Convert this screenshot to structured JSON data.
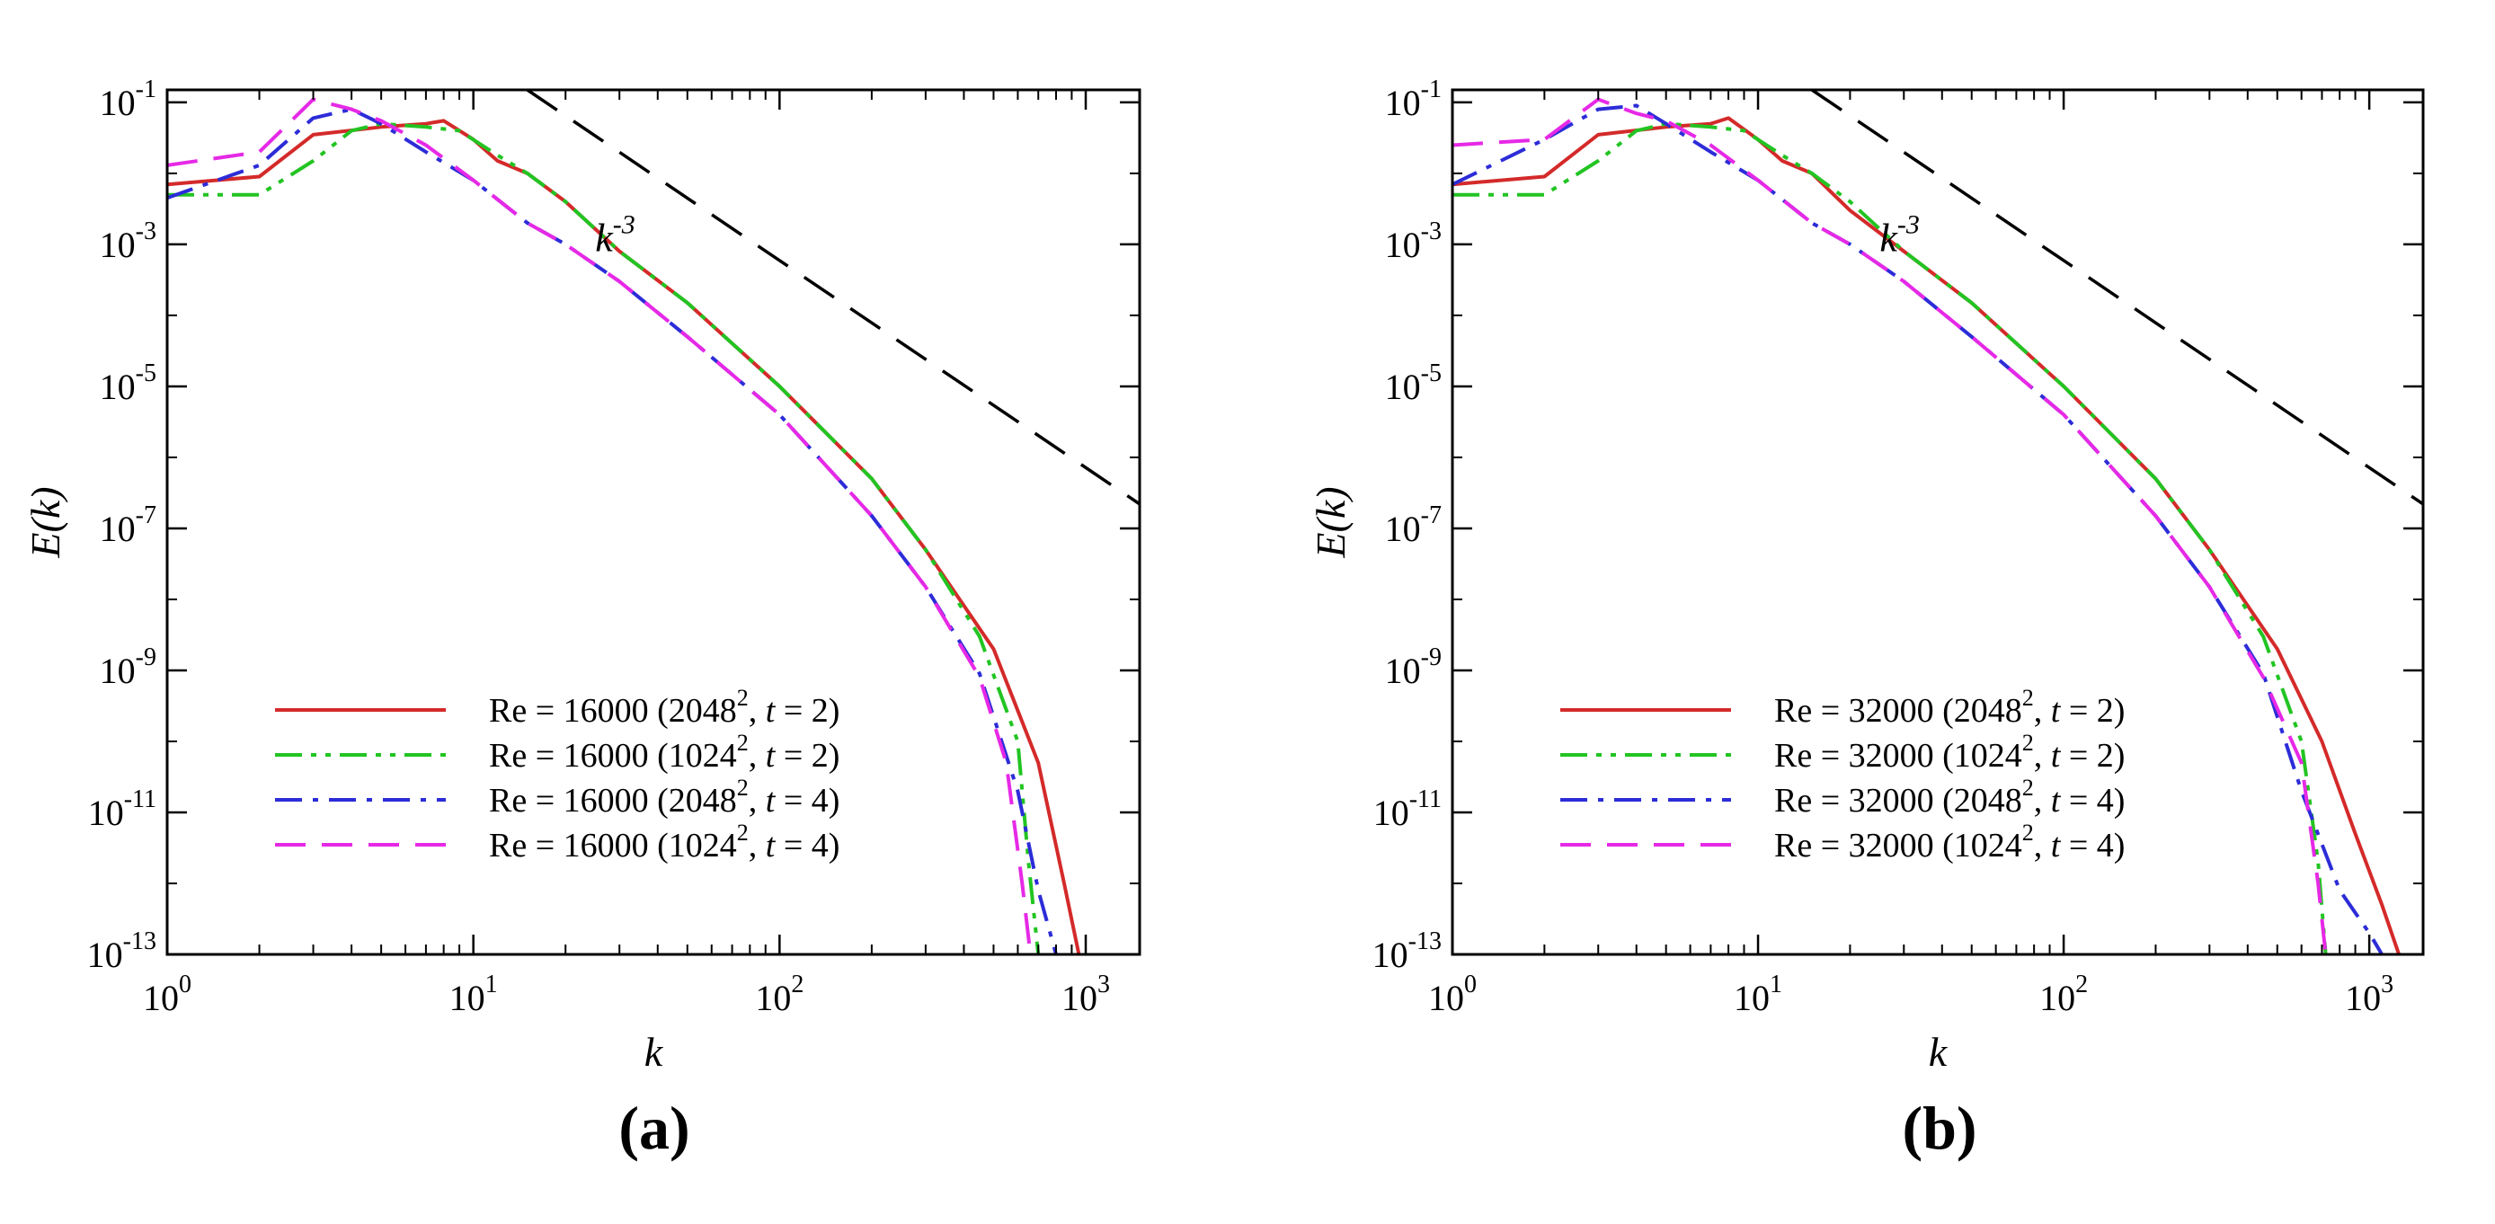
{
  "chart_data": [
    {
      "id": "a",
      "caption": "(a)",
      "type": "line",
      "xscale": "log",
      "yscale": "log",
      "xlim": [
        1,
        1500
      ],
      "ylim": [
        1e-13,
        0.15
      ],
      "xlabel": "k",
      "ylabel": "E(k)",
      "x_ticks": [
        {
          "value": 1,
          "base": "10",
          "exp": "0"
        },
        {
          "value": 10,
          "base": "10",
          "exp": "1"
        },
        {
          "value": 100,
          "base": "10",
          "exp": "2"
        },
        {
          "value": 1000,
          "base": "10",
          "exp": "3"
        }
      ],
      "y_ticks": [
        {
          "value": 1e-13,
          "base": "10",
          "exp": "-13"
        },
        {
          "value": 1e-11,
          "base": "10",
          "exp": "-11"
        },
        {
          "value": 1e-09,
          "base": "10",
          "exp": "-9"
        },
        {
          "value": 1e-07,
          "base": "10",
          "exp": "-7"
        },
        {
          "value": 1e-05,
          "base": "10",
          "exp": "-5"
        },
        {
          "value": 0.001,
          "base": "10",
          "exp": "-3"
        },
        {
          "value": 0.1,
          "base": "10",
          "exp": "-1"
        }
      ],
      "reference_line": {
        "label_base": "k",
        "label_exp": "-3",
        "slope": -3,
        "points": [
          [
            15,
            0.15
          ],
          [
            1500,
            2.2e-07
          ]
        ],
        "label_at": [
          25,
          0.0008
        ]
      },
      "legend_position": "bottom-left",
      "series": [
        {
          "name": "Re = 16000 (2048², t = 2)",
          "label": {
            "pre": "Re = 16000 (2048",
            "sup": "2",
            "mid": ", ",
            "it": "t",
            "post": " = 2)"
          },
          "color": "#d42a2a",
          "dash": "solid",
          "points": [
            [
              1,
              0.007
            ],
            [
              2,
              0.009
            ],
            [
              3,
              0.035
            ],
            [
              5,
              0.045
            ],
            [
              7,
              0.05
            ],
            [
              8,
              0.055
            ],
            [
              10,
              0.03
            ],
            [
              12,
              0.015
            ],
            [
              15,
              0.01
            ],
            [
              20,
              0.004
            ],
            [
              30,
              0.0008
            ],
            [
              50,
              0.00015
            ],
            [
              100,
              1e-05
            ],
            [
              200,
              5e-07
            ],
            [
              300,
              5e-08
            ],
            [
              500,
              2e-09
            ],
            [
              700,
              5e-11
            ],
            [
              850,
              1e-12
            ],
            [
              950,
              1e-13
            ]
          ]
        },
        {
          "name": "Re = 16000 (1024², t = 2)",
          "label": {
            "pre": "Re = 16000 (1024",
            "sup": "2",
            "mid": ", ",
            "it": "t",
            "post": " = 2)"
          },
          "color": "#22c422",
          "dash": "dashdotdot",
          "points": [
            [
              1,
              0.005
            ],
            [
              2,
              0.005
            ],
            [
              3,
              0.015
            ],
            [
              4,
              0.04
            ],
            [
              5,
              0.05
            ],
            [
              7,
              0.045
            ],
            [
              9,
              0.04
            ],
            [
              12,
              0.018
            ],
            [
              15,
              0.01
            ],
            [
              20,
              0.004
            ],
            [
              30,
              0.0008
            ],
            [
              50,
              0.00015
            ],
            [
              100,
              1e-05
            ],
            [
              200,
              5e-07
            ],
            [
              300,
              5e-08
            ],
            [
              450,
              3e-09
            ],
            [
              600,
              1e-10
            ],
            [
              650,
              2e-12
            ],
            [
              700,
              1e-13
            ]
          ]
        },
        {
          "name": "Re = 16000 (2048², t = 4)",
          "label": {
            "pre": "Re = 16000 (2048",
            "sup": "2",
            "mid": ", ",
            "it": "t",
            "post": " = 4)"
          },
          "color": "#2c2cd8",
          "dash": "dashdot",
          "points": [
            [
              1,
              0.0045
            ],
            [
              2,
              0.013
            ],
            [
              3,
              0.06
            ],
            [
              4,
              0.08
            ],
            [
              5,
              0.05
            ],
            [
              7,
              0.02
            ],
            [
              10,
              0.008
            ],
            [
              15,
              0.002
            ],
            [
              20,
              0.001
            ],
            [
              30,
              0.0003
            ],
            [
              50,
              5e-05
            ],
            [
              100,
              4e-06
            ],
            [
              200,
              1.5e-07
            ],
            [
              300,
              1.5e-08
            ],
            [
              450,
              9e-10
            ],
            [
              600,
              2e-11
            ],
            [
              700,
              8e-13
            ],
            [
              800,
              1e-13
            ]
          ]
        },
        {
          "name": "Re = 16000 (1024², t = 4)",
          "label": {
            "pre": "Re = 16000 (1024",
            "sup": "2",
            "mid": ", ",
            "it": "t",
            "post": " = 4)"
          },
          "color": "#e629e6",
          "dash": "dashed",
          "points": [
            [
              1,
              0.013
            ],
            [
              2,
              0.02
            ],
            [
              3,
              0.11
            ],
            [
              4,
              0.08
            ],
            [
              5,
              0.055
            ],
            [
              7,
              0.025
            ],
            [
              10,
              0.008
            ],
            [
              15,
              0.002
            ],
            [
              20,
              0.001
            ],
            [
              30,
              0.0003
            ],
            [
              50,
              5e-05
            ],
            [
              100,
              4e-06
            ],
            [
              200,
              1.5e-07
            ],
            [
              300,
              1.5e-08
            ],
            [
              450,
              8e-10
            ],
            [
              550,
              5e-11
            ],
            [
              620,
              1e-12
            ],
            [
              660,
              1e-13
            ]
          ]
        }
      ]
    },
    {
      "id": "b",
      "caption": "(b)",
      "type": "line",
      "xscale": "log",
      "yscale": "log",
      "xlim": [
        1,
        1500
      ],
      "ylim": [
        1e-13,
        0.15
      ],
      "xlabel": "k",
      "ylabel": "E(k)",
      "x_ticks": [
        {
          "value": 1,
          "base": "10",
          "exp": "0"
        },
        {
          "value": 10,
          "base": "10",
          "exp": "1"
        },
        {
          "value": 100,
          "base": "10",
          "exp": "2"
        },
        {
          "value": 1000,
          "base": "10",
          "exp": "3"
        }
      ],
      "y_ticks": [
        {
          "value": 1e-13,
          "base": "10",
          "exp": "-13"
        },
        {
          "value": 1e-11,
          "base": "10",
          "exp": "-11"
        },
        {
          "value": 1e-09,
          "base": "10",
          "exp": "-9"
        },
        {
          "value": 1e-07,
          "base": "10",
          "exp": "-7"
        },
        {
          "value": 1e-05,
          "base": "10",
          "exp": "-5"
        },
        {
          "value": 0.001,
          "base": "10",
          "exp": "-3"
        },
        {
          "value": 0.1,
          "base": "10",
          "exp": "-1"
        }
      ],
      "reference_line": {
        "label_base": "k",
        "label_exp": "-3",
        "slope": -3,
        "points": [
          [
            15,
            0.15
          ],
          [
            1500,
            2.2e-07
          ]
        ],
        "label_at": [
          25,
          0.0008
        ]
      },
      "legend_position": "bottom-left",
      "series": [
        {
          "name": "Re = 32000 (2048², t = 2)",
          "label": {
            "pre": "Re = 32000 (2048",
            "sup": "2",
            "mid": ", ",
            "it": "t",
            "post": " = 2)"
          },
          "color": "#d42a2a",
          "dash": "solid",
          "points": [
            [
              1,
              0.007
            ],
            [
              2,
              0.009
            ],
            [
              3,
              0.035
            ],
            [
              5,
              0.045
            ],
            [
              7,
              0.05
            ],
            [
              8,
              0.06
            ],
            [
              10,
              0.03
            ],
            [
              12,
              0.015
            ],
            [
              15,
              0.01
            ],
            [
              20,
              0.003
            ],
            [
              30,
              0.0008
            ],
            [
              50,
              0.00015
            ],
            [
              100,
              1e-05
            ],
            [
              200,
              5e-07
            ],
            [
              300,
              5e-08
            ],
            [
              500,
              2e-09
            ],
            [
              700,
              1e-10
            ],
            [
              900,
              5e-12
            ],
            [
              1100,
              5e-13
            ],
            [
              1250,
              1e-13
            ]
          ]
        },
        {
          "name": "Re = 32000 (1024², t = 2)",
          "label": {
            "pre": "Re = 32000 (1024",
            "sup": "2",
            "mid": ", ",
            "it": "t",
            "post": " = 2)"
          },
          "color": "#22c422",
          "dash": "dashdotdot",
          "points": [
            [
              1,
              0.005
            ],
            [
              2,
              0.005
            ],
            [
              3,
              0.015
            ],
            [
              4,
              0.04
            ],
            [
              5,
              0.05
            ],
            [
              7,
              0.045
            ],
            [
              9,
              0.04
            ],
            [
              12,
              0.018
            ],
            [
              15,
              0.01
            ],
            [
              20,
              0.004
            ],
            [
              30,
              0.0008
            ],
            [
              50,
              0.00015
            ],
            [
              100,
              1e-05
            ],
            [
              200,
              5e-07
            ],
            [
              300,
              5e-08
            ],
            [
              450,
              3e-09
            ],
            [
              600,
              1e-10
            ],
            [
              680,
              2e-12
            ],
            [
              720,
              1e-13
            ]
          ]
        },
        {
          "name": "Re = 32000 (2048², t = 4)",
          "label": {
            "pre": "Re = 32000 (2048",
            "sup": "2",
            "mid": ", ",
            "it": "t",
            "post": " = 4)"
          },
          "color": "#2c2cd8",
          "dash": "dashdot",
          "points": [
            [
              1,
              0.007
            ],
            [
              2,
              0.03
            ],
            [
              3,
              0.08
            ],
            [
              4,
              0.09
            ],
            [
              5,
              0.05
            ],
            [
              7,
              0.02
            ],
            [
              10,
              0.008
            ],
            [
              15,
              0.002
            ],
            [
              20,
              0.001
            ],
            [
              30,
              0.0003
            ],
            [
              50,
              5e-05
            ],
            [
              100,
              4e-06
            ],
            [
              200,
              1.5e-07
            ],
            [
              300,
              1.5e-08
            ],
            [
              450,
              9e-10
            ],
            [
              600,
              2e-11
            ],
            [
              800,
              8e-13
            ],
            [
              1000,
              2e-13
            ],
            [
              1100,
              1e-13
            ]
          ]
        },
        {
          "name": "Re = 32000 (1024², t = 4)",
          "label": {
            "pre": "Re = 32000 (1024",
            "sup": "2",
            "mid": ", ",
            "it": "t",
            "post": " = 4)"
          },
          "color": "#e629e6",
          "dash": "dashed",
          "points": [
            [
              1,
              0.025
            ],
            [
              2,
              0.03
            ],
            [
              3,
              0.11
            ],
            [
              4,
              0.07
            ],
            [
              5,
              0.055
            ],
            [
              7,
              0.025
            ],
            [
              10,
              0.008
            ],
            [
              15,
              0.002
            ],
            [
              20,
              0.001
            ],
            [
              30,
              0.0003
            ],
            [
              50,
              5e-05
            ],
            [
              100,
              4e-06
            ],
            [
              200,
              1.5e-07
            ],
            [
              300,
              1.5e-08
            ],
            [
              450,
              8e-10
            ],
            [
              600,
              5e-11
            ],
            [
              680,
              1e-12
            ],
            [
              720,
              1e-13
            ]
          ]
        }
      ]
    }
  ]
}
